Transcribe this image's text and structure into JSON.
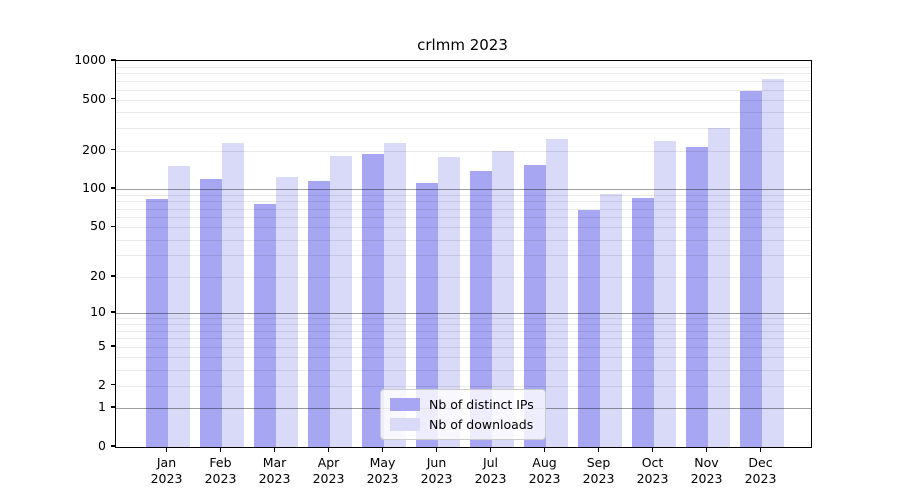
{
  "figure": {
    "background": "#ffffff"
  },
  "legend": {
    "items": [
      {
        "label": "Nb of distinct IPs",
        "color": "#a6a6f2"
      },
      {
        "label": "Nb of downloads",
        "color": "#d9d9f8"
      }
    ]
  },
  "chart_data": {
    "type": "bar",
    "title": "crlmm 2023",
    "categories": [
      "Jan",
      "Feb",
      "Mar",
      "Apr",
      "May",
      "Jun",
      "Jul",
      "Aug",
      "Sep",
      "Oct",
      "Nov",
      "Dec"
    ],
    "category_year": "2023",
    "series": [
      {
        "name": "Nb of distinct IPs",
        "color": "#a6a6f2",
        "values": [
          84,
          120,
          77,
          115,
          187,
          112,
          140,
          156,
          69,
          86,
          215,
          585
        ]
      },
      {
        "name": "Nb of downloads",
        "color": "#d9d9f8",
        "values": [
          153,
          230,
          124,
          183,
          228,
          180,
          200,
          245,
          92,
          240,
          300,
          725
        ]
      }
    ],
    "xlabel": "",
    "ylabel": "",
    "yscale": "log10(1+y)",
    "ylim": [
      0,
      1000
    ],
    "ytick_labels": [
      "0",
      "1",
      "2",
      "5",
      "10",
      "20",
      "50",
      "100",
      "200",
      "500",
      "1000"
    ],
    "yticks": [
      0,
      1,
      2,
      5,
      10,
      20,
      50,
      100,
      200,
      500,
      1000
    ],
    "gridlines_major": [
      1,
      10,
      100
    ],
    "gridlines_minor": [
      2,
      3,
      4,
      5,
      6,
      7,
      8,
      9,
      20,
      30,
      40,
      50,
      60,
      70,
      80,
      90,
      200,
      300,
      400,
      500,
      600,
      700,
      800,
      900
    ],
    "grid": true,
    "legend_position": "bottom-center"
  }
}
